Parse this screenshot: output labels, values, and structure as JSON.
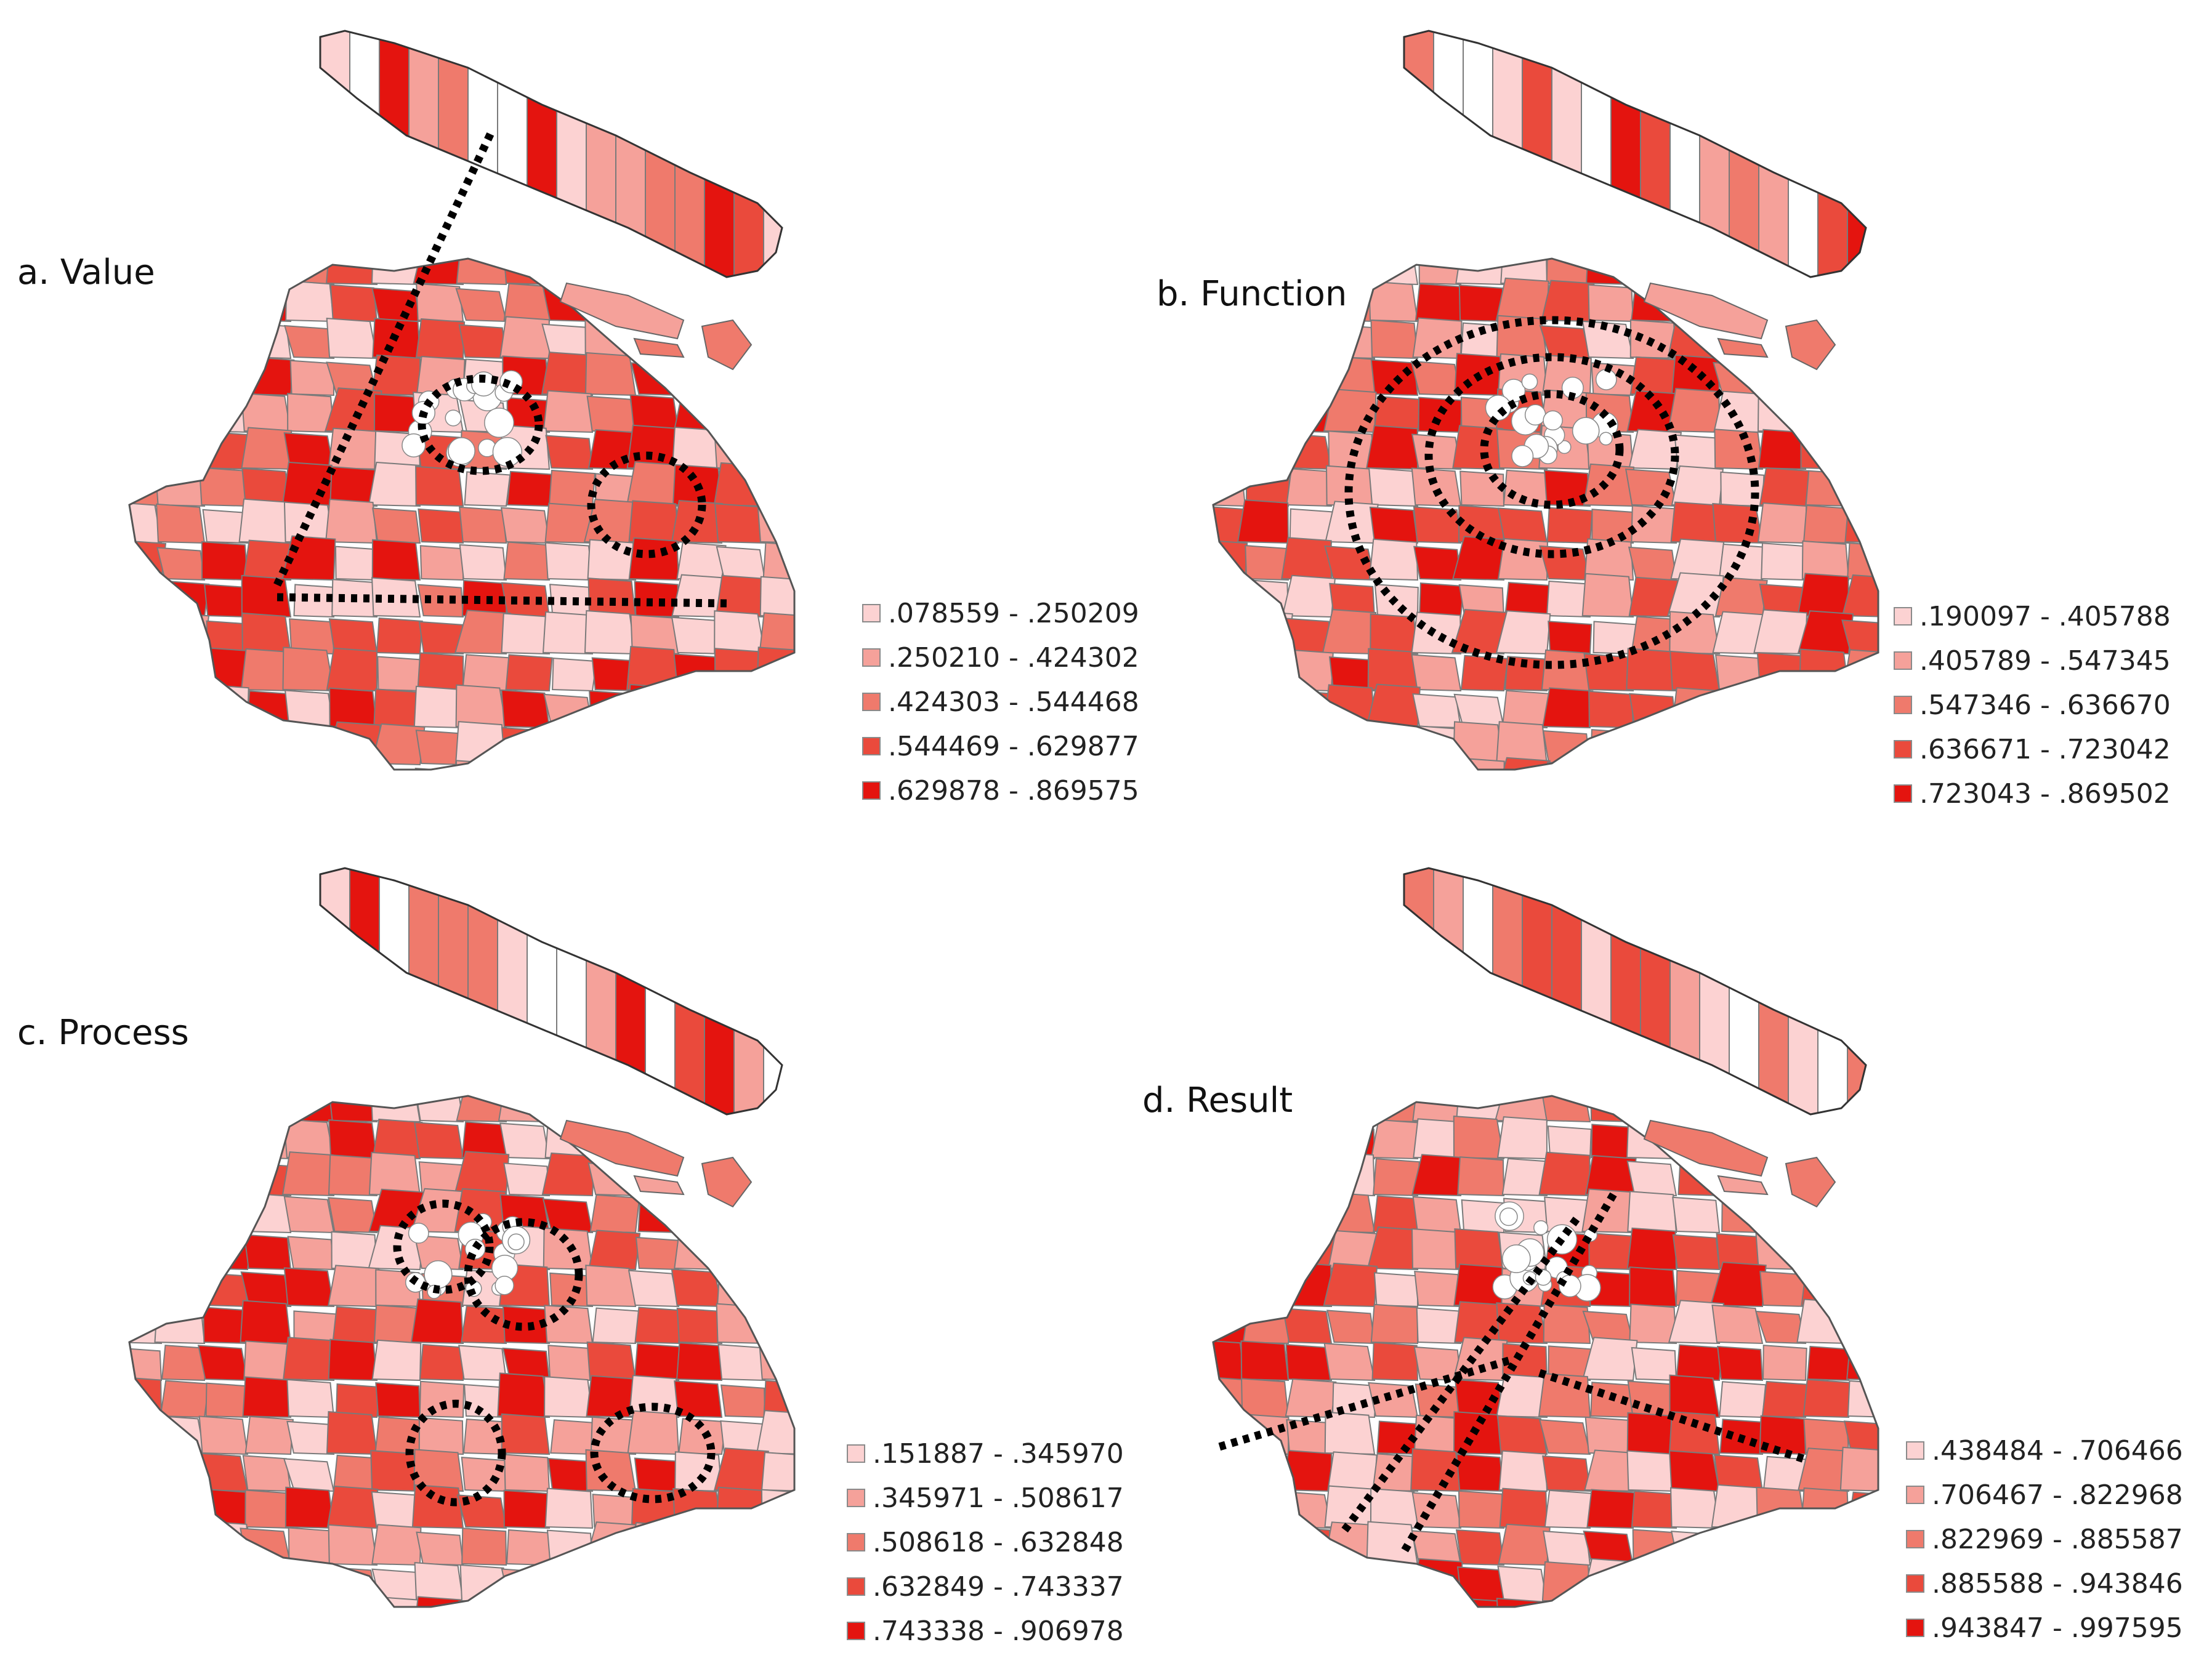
{
  "palette": [
    "#fcd2d2",
    "#f5a19a",
    "#ef7a6c",
    "#ea4a3c",
    "#e4140f"
  ],
  "panels": [
    {
      "label": "a. Value",
      "legend": [
        ".078559 - .250209",
        ".250210 - .424302",
        ".424303 - .544468",
        ".544469 - .629877",
        ".629878 - .869575"
      ]
    },
    {
      "label": "b. Function",
      "legend": [
        ".190097 - .405788",
        ".405789 - .547345",
        ".547346 - .636670",
        ".636671 - .723042",
        ".723043 - .869502"
      ]
    },
    {
      "label": "c. Process",
      "legend": [
        ".151887 - .345970",
        ".345971 - .508617",
        ".508618 - .632848",
        ".632849 - .743337",
        ".743338 - .906978"
      ]
    },
    {
      "label": "d. Result",
      "legend": [
        ".438484 - .706466",
        ".706467 - .822968",
        ".822969 - .885587",
        ".885588 - .943846",
        ".943847 - .997595"
      ]
    }
  ]
}
